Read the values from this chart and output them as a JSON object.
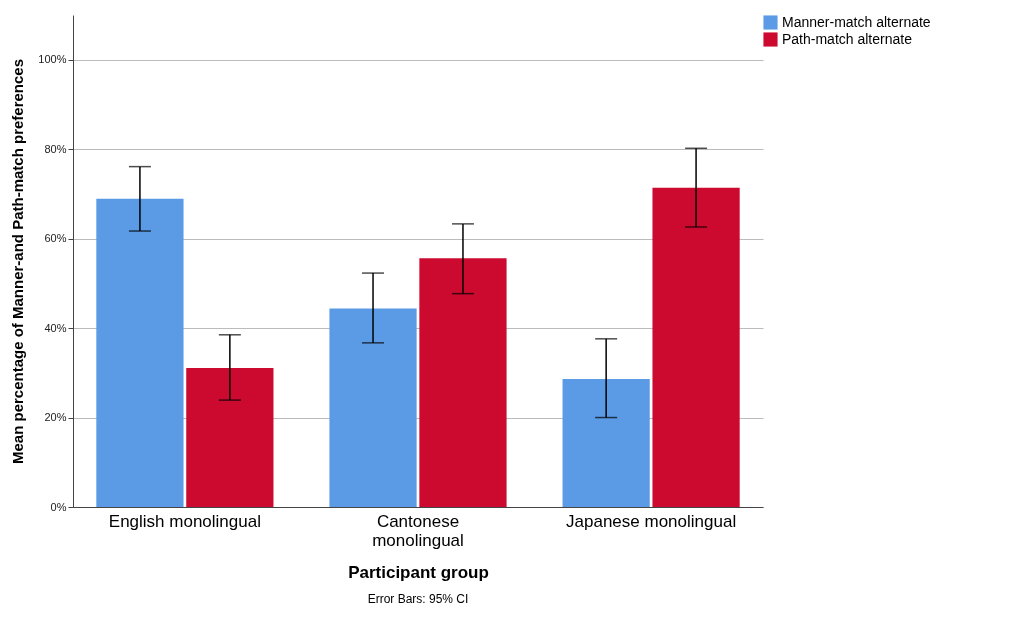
{
  "chart_data": {
    "type": "bar",
    "xlabel": "Participant group",
    "ylabel": "Mean percentage of Manner-and Path-match preferences",
    "categories": [
      "English monolingual",
      "Cantonese monolingual",
      "Japanese monolingual"
    ],
    "series": [
      {
        "name": "Manner-match alternate",
        "color": "#5b9be6",
        "values": [
          68.9,
          44.4,
          28.6
        ],
        "errors": [
          [
            61.7,
            76.1
          ],
          [
            36.7,
            52.3
          ],
          [
            20.0,
            37.6
          ]
        ]
      },
      {
        "name": "Path-match alternate",
        "color": "#cc0a2f",
        "values": [
          31.1,
          55.6,
          71.4
        ],
        "errors": [
          [
            23.9,
            38.5
          ],
          [
            47.7,
            63.3
          ],
          [
            62.6,
            80.2
          ]
        ]
      }
    ],
    "ylim": [
      0,
      110
    ],
    "yticks": [
      {
        "value": 0,
        "label": "0%"
      },
      {
        "value": 20,
        "label": "20%"
      },
      {
        "value": 40,
        "label": "40%"
      },
      {
        "value": 60,
        "label": "60%"
      },
      {
        "value": 80,
        "label": "80%"
      },
      {
        "value": 100,
        "label": "100%"
      }
    ],
    "grid": "y",
    "legend": "top right",
    "annotations": [
      "Error Bars: 95% CI"
    ]
  }
}
